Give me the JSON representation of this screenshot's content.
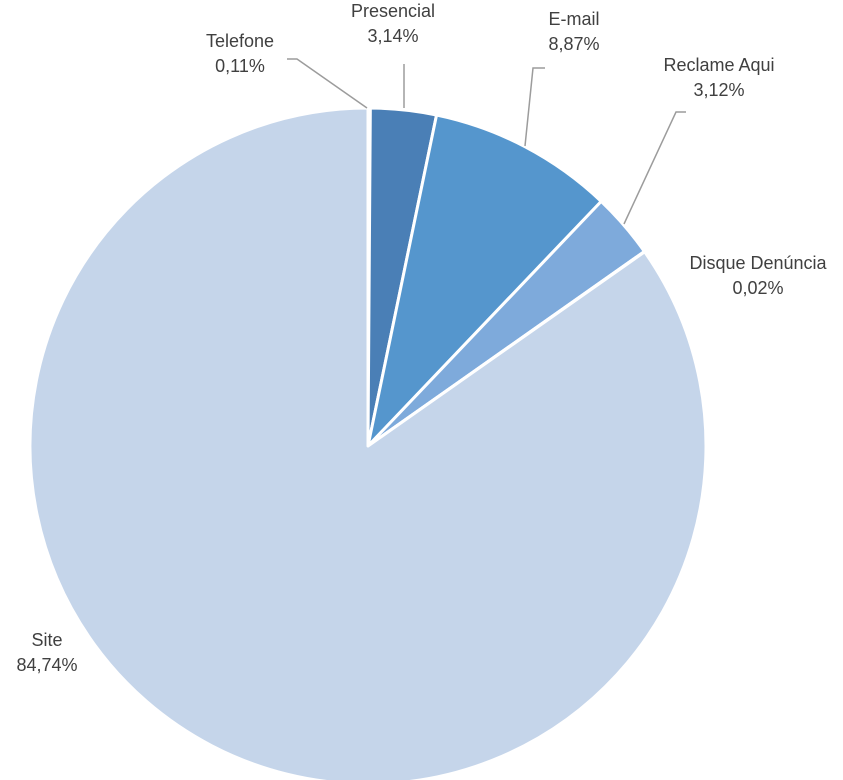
{
  "chart_data": {
    "type": "pie",
    "title": "",
    "slices": [
      {
        "name": "Telefone",
        "value": 0.11,
        "value_label": "0,11%",
        "color": "#2e5f96"
      },
      {
        "name": "Presencial",
        "value": 3.14,
        "value_label": "3,14%",
        "color": "#4a7fb6"
      },
      {
        "name": "E-mail",
        "value": 8.87,
        "value_label": "8,87%",
        "color": "#5596cd"
      },
      {
        "name": "Reclame Aqui",
        "value": 3.12,
        "value_label": "3,12%",
        "color": "#7eaadb"
      },
      {
        "name": "Disque Denúncia",
        "value": 0.02,
        "value_label": "0,02%",
        "color": "#a7c3e6"
      },
      {
        "name": "Site",
        "value": 84.74,
        "value_label": "84,74%",
        "color": "#c5d5ea"
      }
    ],
    "start_angle": "12 o'clock",
    "direction": "clockwise",
    "legend": "none",
    "data_labels": "category name and percentage"
  }
}
